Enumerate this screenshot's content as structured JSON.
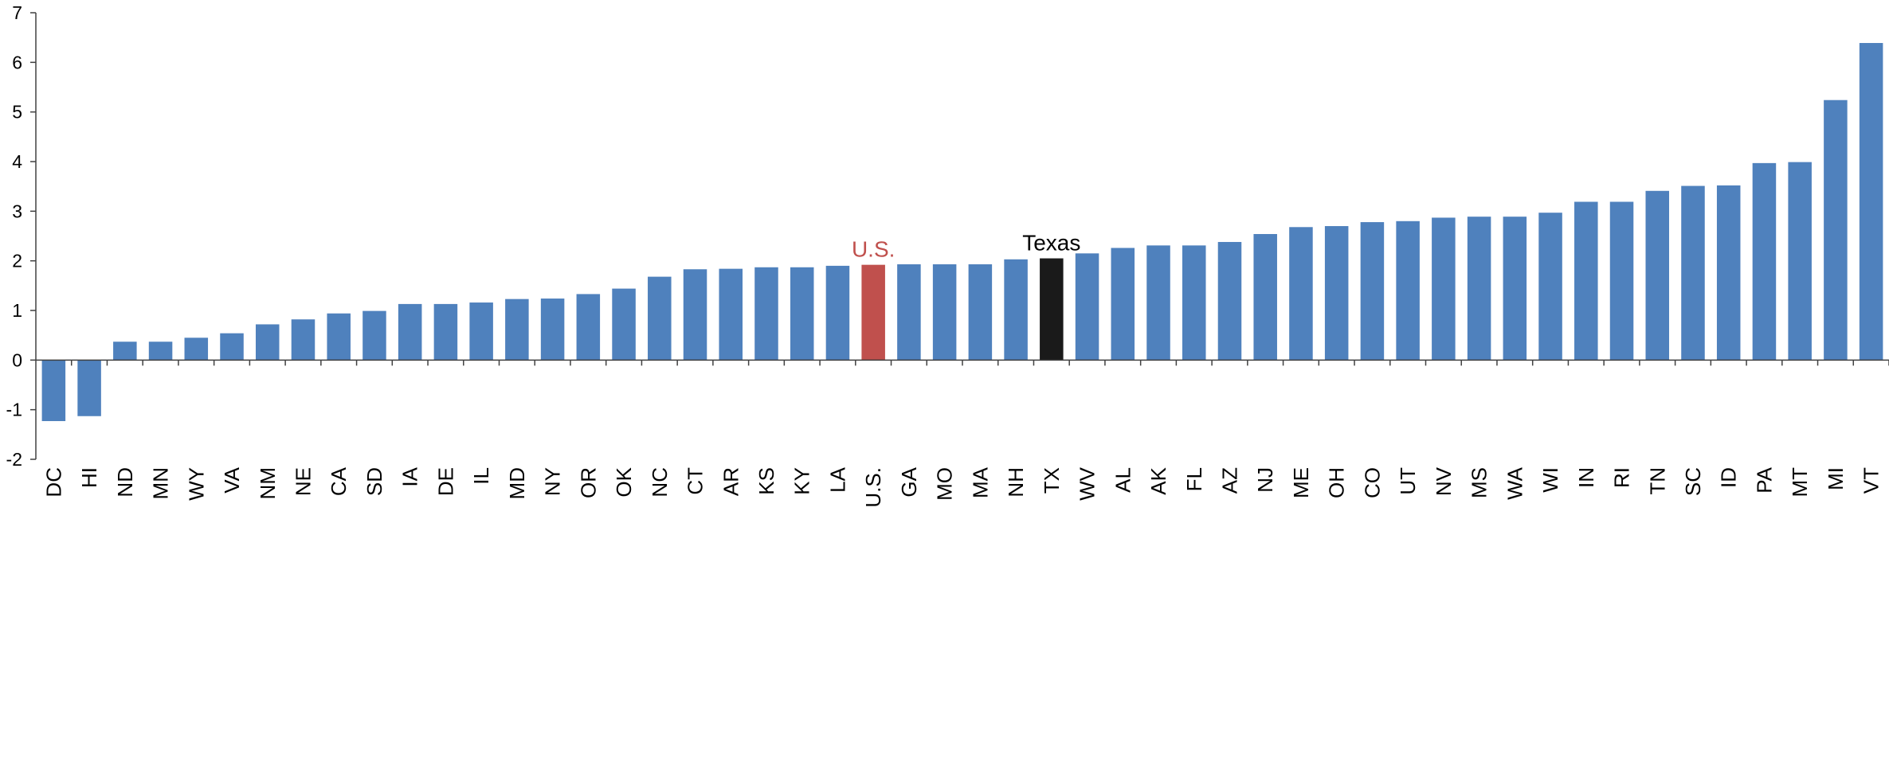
{
  "chart_data": {
    "type": "bar",
    "categories": [
      "DC",
      "HI",
      "ND",
      "MN",
      "WY",
      "VA",
      "NM",
      "NE",
      "CA",
      "SD",
      "IA",
      "DE",
      "IL",
      "MD",
      "NY",
      "OR",
      "OK",
      "NC",
      "CT",
      "AR",
      "KS",
      "KY",
      "LA",
      "U.S.",
      "GA",
      "MO",
      "MA",
      "NH",
      "TX",
      "WV",
      "AL",
      "AK",
      "FL",
      "AZ",
      "NJ",
      "ME",
      "OH",
      "CO",
      "UT",
      "NV",
      "MS",
      "WA",
      "WI",
      "IN",
      "RI",
      "TN",
      "SC",
      "ID",
      "PA",
      "MT",
      "MI",
      "VT"
    ],
    "values": [
      -1.23,
      -1.13,
      0.37,
      0.37,
      0.45,
      0.54,
      0.72,
      0.82,
      0.94,
      0.99,
      1.13,
      1.13,
      1.16,
      1.23,
      1.24,
      1.33,
      1.44,
      1.68,
      1.83,
      1.84,
      1.87,
      1.87,
      1.9,
      1.92,
      1.93,
      1.93,
      1.93,
      2.03,
      2.05,
      2.15,
      2.26,
      2.31,
      2.31,
      2.38,
      2.54,
      2.68,
      2.7,
      2.78,
      2.8,
      2.87,
      2.89,
      2.89,
      2.97,
      3.19,
      3.19,
      3.41,
      3.51,
      3.52,
      3.97,
      3.99,
      5.24,
      6.39
    ],
    "ylim": [
      -2,
      7
    ],
    "yticks": [
      "-2",
      "-1",
      "0",
      "1",
      "2",
      "3",
      "4",
      "5",
      "6",
      "7"
    ],
    "grid": false,
    "legend": "none",
    "colors": {
      "default": "#4f81bd",
      "us": "#c0504d",
      "texas": "#1a1a1a",
      "axis": "#404040",
      "us_label": "#c0504d",
      "texas_label": "#000000"
    },
    "highlights": {
      "U.S.": "us",
      "TX": "texas"
    },
    "annotations": [
      {
        "category": "U.S.",
        "text": "U.S.",
        "color_key": "us_label"
      },
      {
        "category": "TX",
        "text": "Texas",
        "color_key": "texas_label"
      }
    ]
  }
}
